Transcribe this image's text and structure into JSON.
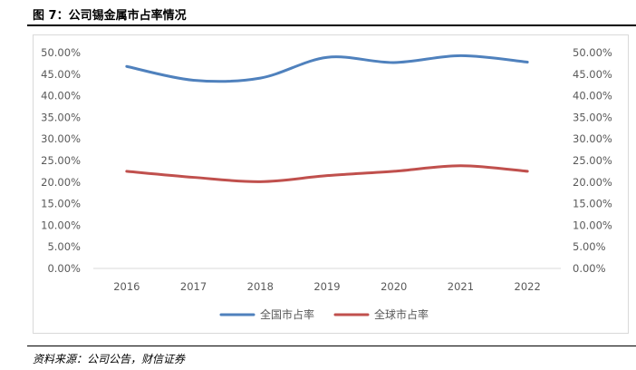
{
  "figure": {
    "title": "图 7：公司锡金属市占率情况",
    "source": "资料来源：公司公告，财信证券"
  },
  "chart_data": {
    "type": "line",
    "x": [
      "2016",
      "2017",
      "2018",
      "2019",
      "2020",
      "2021",
      "2022"
    ],
    "series": [
      {
        "name": "全国市占率",
        "color": "#4f81bd",
        "values": [
          46.8,
          43.6,
          44.1,
          48.9,
          47.7,
          49.3,
          47.8
        ]
      },
      {
        "name": "全球市占率",
        "color": "#c0504d",
        "values": [
          22.5,
          21.1,
          20.1,
          21.5,
          22.5,
          23.8,
          22.5
        ]
      }
    ],
    "ylim": [
      0,
      50
    ],
    "yticks": [
      "0.00%",
      "5.00%",
      "10.00%",
      "15.00%",
      "20.00%",
      "25.00%",
      "30.00%",
      "35.00%",
      "40.00%",
      "45.00%",
      "50.00%"
    ],
    "y2ticks": [
      "0.00%",
      "5.00%",
      "10.00%",
      "15.00%",
      "20.00%",
      "25.00%",
      "30.00%",
      "35.00%",
      "40.00%",
      "45.00%",
      "50.00%"
    ],
    "grid": false,
    "legend": "bottom",
    "smooth": true
  }
}
